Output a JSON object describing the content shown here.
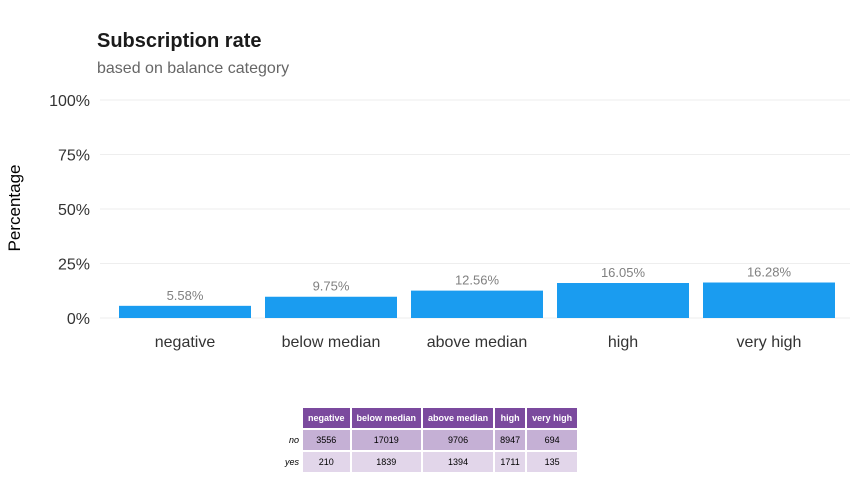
{
  "chart_data": {
    "type": "bar",
    "title": "Subscription rate",
    "subtitle": "based on balance category",
    "xlabel": "",
    "ylabel": "Percentage",
    "categories": [
      "negative",
      "below median",
      "above median",
      "high",
      "very high"
    ],
    "values": [
      5.58,
      9.75,
      12.56,
      16.05,
      16.28
    ],
    "value_labels": [
      "5.58%",
      "9.75%",
      "12.56%",
      "16.05%",
      "16.28%"
    ],
    "ylim": [
      0,
      100
    ],
    "yticks": [
      0,
      25,
      50,
      75,
      100
    ],
    "ytick_labels": [
      "0%",
      "25%",
      "50%",
      "75%",
      "100%"
    ],
    "grid": true,
    "colors": {
      "bar": "#1a9cf0",
      "grid": "#eeeeee",
      "table_header": "#7b4a9e",
      "table_row_no": "#c5b0d5",
      "table_row_yes": "#e2d6ea"
    },
    "table": {
      "columns": [
        "negative",
        "below median",
        "above median",
        "high",
        "very high"
      ],
      "rows": [
        {
          "label": "no",
          "values": [
            "3556",
            "17019",
            "9706",
            "8947",
            "694"
          ]
        },
        {
          "label": "yes",
          "values": [
            "210",
            "1839",
            "1394",
            "1711",
            "135"
          ]
        }
      ]
    }
  }
}
